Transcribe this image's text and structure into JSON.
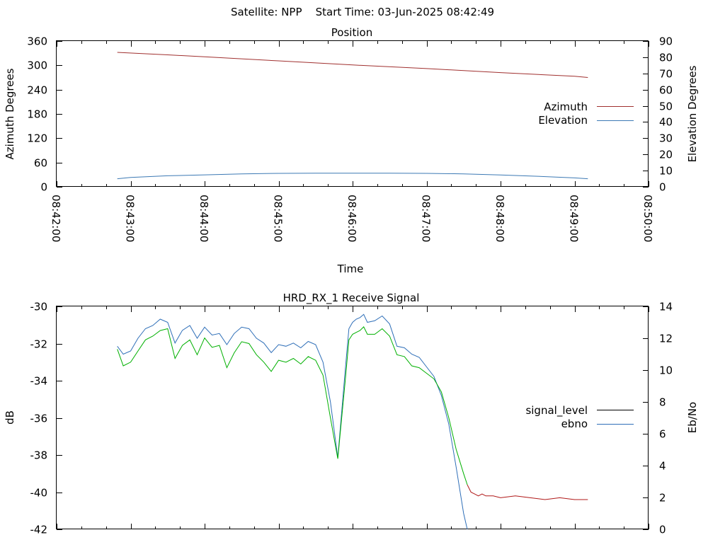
{
  "header": {
    "title": "Satellite: NPP    Start Time: 03-Jun-2025 08:42:49"
  },
  "colors": {
    "azimuth": "#a0302f",
    "elevation": "#3c79b4",
    "signal_level": "#00b000",
    "ebno": "#2f6fb8",
    "signal_low": "#b01818",
    "legend_signal_level": "#000000",
    "legend_ebno": "#2f6fb8"
  },
  "chart_data": [
    {
      "type": "line",
      "title": "Position",
      "xlabel": "Time",
      "ylabel": "Azimuth Degrees",
      "y2label": "Elevation Degrees",
      "x_ticks": [
        "08:42:00",
        "08:43:00",
        "08:44:00",
        "08:45:00",
        "08:46:00",
        "08:47:00",
        "08:48:00",
        "08:49:00",
        "08:50:00"
      ],
      "xlim": [
        0,
        8
      ],
      "ylim": [
        0,
        360
      ],
      "y_ticks": [
        "0",
        "60",
        "120",
        "180",
        "240",
        "300",
        "360"
      ],
      "y2lim": [
        0,
        90
      ],
      "y2_ticks": [
        "0",
        "10",
        "20",
        "30",
        "40",
        "50",
        "60",
        "70",
        "80",
        "90"
      ],
      "legend_position": "right",
      "series": [
        {
          "name": "Azimuth",
          "axis": "y",
          "x": [
            0.82,
            1.5,
            2.0,
            3.0,
            4.0,
            5.0,
            6.0,
            7.0,
            7.18
          ],
          "values": [
            332,
            326,
            321,
            311,
            301,
            292,
            282,
            273,
            270
          ]
        },
        {
          "name": "Elevation",
          "axis": "y2",
          "x": [
            0.82,
            1.0,
            1.5,
            2.0,
            2.5,
            3.0,
            3.5,
            4.0,
            4.5,
            5.0,
            5.5,
            6.0,
            6.5,
            7.0,
            7.18
          ],
          "values": [
            5,
            5.8,
            6.8,
            7.4,
            8.0,
            8.3,
            8.4,
            8.4,
            8.4,
            8.3,
            8.0,
            7.3,
            6.5,
            5.5,
            5
          ]
        }
      ]
    },
    {
      "type": "line",
      "title": "HRD_RX_1 Receive Signal",
      "xlabel": "",
      "ylabel": "dB",
      "y2label": "Eb/No",
      "xlim": [
        0,
        8
      ],
      "ylim": [
        -42,
        -30
      ],
      "y_ticks": [
        "-42",
        "-40",
        "-38",
        "-36",
        "-34",
        "-32",
        "-30"
      ],
      "y2lim": [
        0,
        14
      ],
      "y2_ticks": [
        "0",
        "2",
        "4",
        "6",
        "8",
        "10",
        "12",
        "14"
      ],
      "legend_position": "right",
      "series": [
        {
          "name": "signal_level",
          "axis": "y",
          "x": [
            0.82,
            0.9,
            1.0,
            1.1,
            1.2,
            1.3,
            1.4,
            1.5,
            1.6,
            1.7,
            1.8,
            1.9,
            2.0,
            2.1,
            2.2,
            2.3,
            2.4,
            2.5,
            2.6,
            2.7,
            2.8,
            2.9,
            3.0,
            3.1,
            3.2,
            3.3,
            3.4,
            3.5,
            3.6,
            3.7,
            3.8,
            3.9,
            3.95,
            4.0,
            4.05,
            4.1,
            4.15,
            4.2,
            4.3,
            4.4,
            4.5,
            4.6,
            4.7,
            4.8,
            4.9,
            5.0,
            5.1,
            5.2,
            5.3,
            5.4,
            5.5,
            5.55,
            5.6,
            5.65,
            5.7,
            5.75,
            5.8,
            5.9,
            6.0,
            6.2,
            6.4,
            6.6,
            6.8,
            7.0,
            7.18
          ],
          "values": [
            -32.3,
            -33.2,
            -33.0,
            -32.4,
            -31.8,
            -31.6,
            -31.3,
            -31.2,
            -32.8,
            -32.1,
            -31.8,
            -32.6,
            -31.7,
            -32.2,
            -32.1,
            -33.3,
            -32.5,
            -31.9,
            -32.0,
            -32.6,
            -33.0,
            -33.5,
            -32.9,
            -33.0,
            -32.8,
            -33.1,
            -32.7,
            -32.9,
            -33.7,
            -36.0,
            -38.2,
            -34.0,
            -31.8,
            -31.5,
            -31.4,
            -31.3,
            -31.1,
            -31.5,
            -31.5,
            -31.2,
            -31.6,
            -32.6,
            -32.7,
            -33.2,
            -33.3,
            -33.6,
            -33.9,
            -34.6,
            -36.0,
            -37.7,
            -39.0,
            -39.6,
            -40.0,
            -40.1,
            -40.2,
            -40.1,
            -40.2,
            -40.2,
            -40.3,
            -40.2,
            -40.3,
            -40.4,
            -40.3,
            -40.4,
            -40.4
          ]
        },
        {
          "name": "ebno",
          "axis": "y2",
          "x": [
            0.82,
            0.9,
            1.0,
            1.1,
            1.2,
            1.3,
            1.4,
            1.5,
            1.6,
            1.7,
            1.8,
            1.9,
            2.0,
            2.1,
            2.2,
            2.3,
            2.4,
            2.5,
            2.6,
            2.7,
            2.8,
            2.9,
            3.0,
            3.1,
            3.2,
            3.3,
            3.4,
            3.5,
            3.6,
            3.7,
            3.8,
            3.9,
            3.95,
            4.0,
            4.05,
            4.1,
            4.15,
            4.2,
            4.3,
            4.4,
            4.5,
            4.6,
            4.7,
            4.8,
            4.9,
            5.0,
            5.1,
            5.2,
            5.3,
            5.4,
            5.5,
            5.55
          ],
          "values": [
            11.5,
            11.0,
            11.2,
            12.0,
            12.6,
            12.8,
            13.2,
            13.0,
            11.7,
            12.5,
            12.8,
            12.0,
            12.7,
            12.2,
            12.3,
            11.6,
            12.3,
            12.7,
            12.6,
            12.0,
            11.7,
            11.1,
            11.6,
            11.5,
            11.7,
            11.4,
            11.8,
            11.6,
            10.5,
            8.0,
            4.5,
            10.0,
            12.6,
            13.0,
            13.2,
            13.3,
            13.5,
            13.0,
            13.1,
            13.4,
            12.9,
            11.5,
            11.4,
            11.0,
            10.8,
            10.2,
            9.6,
            8.4,
            6.6,
            3.9,
            1.0,
            0
          ]
        }
      ]
    }
  ]
}
